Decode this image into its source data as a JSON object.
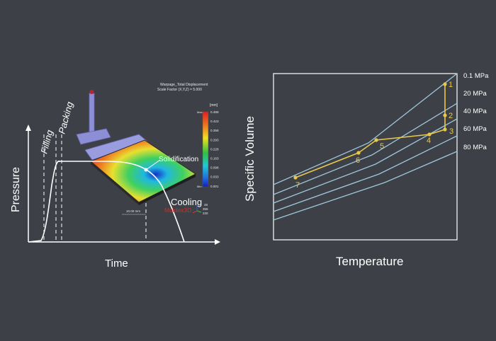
{
  "left_diagram": {
    "y_axis_label": "Pressure",
    "x_axis_label": "Time",
    "phase_labels": {
      "filling": "Filling",
      "packing": "Packing",
      "solidification": "Solidification",
      "cooling": "Cooling"
    },
    "simulation": {
      "title_line1": "Warpage_Total Displacement",
      "title_line2": "Scale Factor (X,Y,Z) = 5.000",
      "unit": "[mm]",
      "legend_max_tag": "Max:",
      "legend_min_tag": "Min:",
      "legend_values": [
        "0.488",
        "0.423",
        "0.358",
        "0.293",
        "0.228",
        "0.163",
        "0.098",
        "0.033",
        "0.001"
      ],
      "scale_bar": "10.00 mm",
      "brand": "Moldex3D",
      "extra_values": [
        "48",
        "359",
        "220"
      ],
      "colors": {
        "red": "#e02020",
        "yellow": "#f0e020",
        "green": "#30c040",
        "cyan": "#20c8d8",
        "blue": "#1030d0"
      }
    }
  },
  "right_diagram": {
    "y_axis_label": "Specific Volume",
    "x_axis_label": "Temperature",
    "pressure_labels": [
      "0.1 MPa",
      "20 MPa",
      "40 MPa",
      "60 MPa",
      "80 MPa"
    ],
    "points": [
      "1",
      "2",
      "3",
      "4",
      "5",
      "6",
      "7"
    ],
    "colors": {
      "isobar": "#9fc7dc",
      "path": "#e8c84a",
      "axis": "#ffffff"
    }
  }
}
